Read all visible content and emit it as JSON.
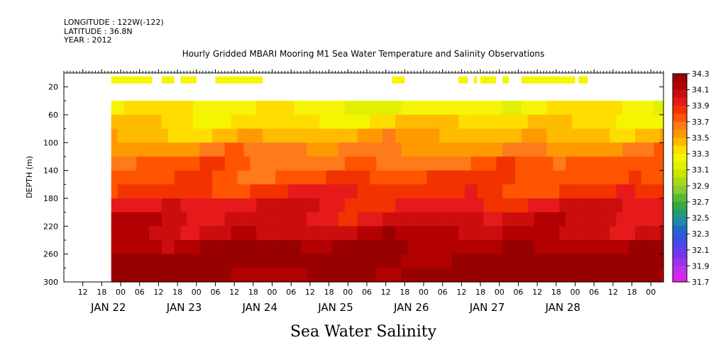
{
  "header": {
    "longitude": "LONGITUDE : 122W(-122)",
    "latitude": "LATITUDE : 36.8N",
    "year": "YEAR : 2012"
  },
  "chart_data": {
    "type": "heatmap",
    "title": "Hourly Gridded MBARI Mooring M1 Sea Water Temperature and Salinity Observations",
    "subtitle": "Sea Water Salinity",
    "ylabel": "DEPTH (m)",
    "xlabel": "",
    "y_axis": {
      "ylim": [
        300,
        0
      ],
      "tick_labels": [
        "20",
        "60",
        "100",
        "140",
        "180",
        "220",
        "260",
        "300"
      ],
      "tick_values": [
        20,
        60,
        100,
        140,
        180,
        220,
        260,
        300
      ]
    },
    "x_axis": {
      "start": "2012-01-21T06:00",
      "end": "2012-01-29T04:00",
      "hour_tick_labels": [
        {
          "t": "2012-01-21T12:00",
          "label": "12"
        },
        {
          "t": "2012-01-21T18:00",
          "label": "18"
        },
        {
          "t": "2012-01-22T00:00",
          "label": "00"
        },
        {
          "t": "2012-01-22T06:00",
          "label": "06"
        },
        {
          "t": "2012-01-22T12:00",
          "label": "12"
        },
        {
          "t": "2012-01-22T18:00",
          "label": "18"
        },
        {
          "t": "2012-01-23T00:00",
          "label": "00"
        },
        {
          "t": "2012-01-23T06:00",
          "label": "06"
        },
        {
          "t": "2012-01-23T12:00",
          "label": "12"
        },
        {
          "t": "2012-01-23T18:00",
          "label": "18"
        },
        {
          "t": "2012-01-24T00:00",
          "label": "00"
        },
        {
          "t": "2012-01-24T06:00",
          "label": "06"
        },
        {
          "t": "2012-01-24T12:00",
          "label": "12"
        },
        {
          "t": "2012-01-24T18:00",
          "label": "18"
        },
        {
          "t": "2012-01-25T00:00",
          "label": "00"
        },
        {
          "t": "2012-01-25T06:00",
          "label": "06"
        },
        {
          "t": "2012-01-25T12:00",
          "label": "12"
        },
        {
          "t": "2012-01-25T18:00",
          "label": "18"
        },
        {
          "t": "2012-01-26T00:00",
          "label": "00"
        },
        {
          "t": "2012-01-26T06:00",
          "label": "06"
        },
        {
          "t": "2012-01-26T12:00",
          "label": "12"
        },
        {
          "t": "2012-01-26T18:00",
          "label": "18"
        },
        {
          "t": "2012-01-27T00:00",
          "label": "00"
        },
        {
          "t": "2012-01-27T06:00",
          "label": "06"
        },
        {
          "t": "2012-01-27T12:00",
          "label": "12"
        },
        {
          "t": "2012-01-27T18:00",
          "label": "18"
        },
        {
          "t": "2012-01-28T00:00",
          "label": "00"
        },
        {
          "t": "2012-01-28T06:00",
          "label": "06"
        },
        {
          "t": "2012-01-28T12:00",
          "label": "12"
        },
        {
          "t": "2012-01-28T18:00",
          "label": "18"
        },
        {
          "t": "2012-01-29T00:00",
          "label": "00"
        }
      ],
      "day_labels": [
        {
          "t": "2012-01-22T00:00",
          "label": "JAN 22"
        },
        {
          "t": "2012-01-23T00:00",
          "label": "JAN 23"
        },
        {
          "t": "2012-01-24T00:00",
          "label": "JAN 24"
        },
        {
          "t": "2012-01-25T00:00",
          "label": "JAN 25"
        },
        {
          "t": "2012-01-26T00:00",
          "label": "JAN 26"
        },
        {
          "t": "2012-01-27T00:00",
          "label": "JAN 27"
        },
        {
          "t": "2012-01-28T00:00",
          "label": "JAN 28"
        }
      ]
    },
    "colorbar": {
      "labels": [
        "34.3",
        "34.1",
        "33.9",
        "33.7",
        "33.5",
        "33.3",
        "33.1",
        "32.9",
        "32.7",
        "32.5",
        "32.3",
        "32.1",
        "31.9",
        "31.7"
      ],
      "colors": [
        "#990000",
        "#b30000",
        "#cc0d0d",
        "#e61a1a",
        "#f23300",
        "#ff5500",
        "#ff7a1a",
        "#ff9900",
        "#ffbb00",
        "#ffdd00",
        "#f5f500",
        "#e0f000",
        "#c8e600",
        "#a8d91a",
        "#88cc33",
        "#55bb33",
        "#33aa44",
        "#22997a",
        "#2288aa",
        "#2266cc",
        "#3355dd",
        "#5544ee",
        "#7733ee",
        "#9933ee",
        "#bb33ee",
        "#dd22ee"
      ]
    },
    "data_start": "2012-01-21T21:00",
    "surface_obs_depth": 10,
    "surface_obs_value": 33.2,
    "surface_obs_segments": [
      [
        "2012-01-21T21:00",
        "2012-01-22T10:00"
      ],
      [
        "2012-01-22T13:00",
        "2012-01-22T17:00"
      ],
      [
        "2012-01-22T19:00",
        "2012-01-23T00:00"
      ],
      [
        "2012-01-23T06:00",
        "2012-01-23T21:00"
      ],
      [
        "2012-01-25T14:00",
        "2012-01-25T18:00"
      ],
      [
        "2012-01-26T11:00",
        "2012-01-26T14:00"
      ],
      [
        "2012-01-26T16:00",
        "2012-01-26T17:00"
      ],
      [
        "2012-01-26T18:00",
        "2012-01-26T23:00"
      ],
      [
        "2012-01-27T01:00",
        "2012-01-27T03:00"
      ],
      [
        "2012-01-27T07:00",
        "2012-01-28T00:00"
      ],
      [
        "2012-01-28T01:00",
        "2012-01-28T04:00"
      ]
    ],
    "profile_depths": [
      40,
      60,
      80,
      100,
      120,
      140,
      160,
      180,
      200,
      220,
      240,
      260,
      280,
      300
    ],
    "profile_base": [
      33.25,
      33.35,
      33.48,
      33.6,
      33.7,
      33.78,
      33.86,
      33.94,
      34.02,
      34.1,
      34.2,
      34.28,
      34.25,
      34.2
    ]
  }
}
